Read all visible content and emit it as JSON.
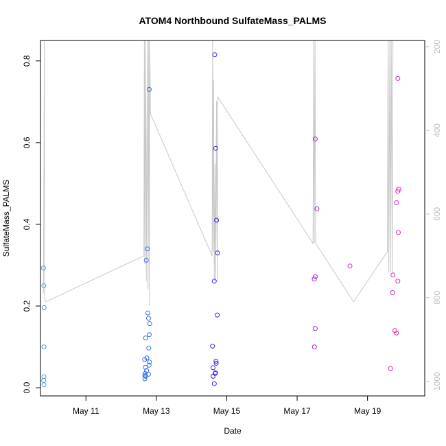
{
  "chart_data": {
    "type": "scatter",
    "title": "ATOM4 Northbound SulfateMass_PALMS",
    "xlabel": "Date",
    "ylabel": "SulfateMass_PALMS",
    "xlim": [
      "2018-05-09T17:00",
      "2018-05-20T15:00"
    ],
    "ylim": [
      -0.02,
      0.85
    ],
    "y2lim": [
      1035,
      185
    ],
    "x_ticks": [
      {
        "date": "2018-05-11",
        "label": "May 11"
      },
      {
        "date": "2018-05-13",
        "label": "May 13"
      },
      {
        "date": "2018-05-15",
        "label": "May 15"
      },
      {
        "date": "2018-05-17",
        "label": "May 17"
      },
      {
        "date": "2018-05-19",
        "label": "May 19"
      }
    ],
    "y_ticks": [
      {
        "value": 0.0,
        "label": "0.0"
      },
      {
        "value": 0.2,
        "label": "0.2"
      },
      {
        "value": 0.4,
        "label": "0.4"
      },
      {
        "value": 0.6,
        "label": "0.6"
      },
      {
        "value": 0.8,
        "label": "0.8"
      }
    ],
    "y2_ticks": [
      {
        "value": 200,
        "label": "200"
      },
      {
        "value": 400,
        "label": "400"
      },
      {
        "value": 600,
        "label": "600"
      },
      {
        "value": 800,
        "label": "800"
      },
      {
        "value": 1000,
        "label": "1000"
      }
    ],
    "grid": false,
    "points": [
      {
        "x": "2018-05-09T19:00",
        "y": 0.293,
        "color": "#3aa3e8"
      },
      {
        "x": "2018-05-09T19:15",
        "y": 0.25,
        "color": "#3aa3e8"
      },
      {
        "x": "2018-05-09T19:30",
        "y": 0.196,
        "color": "#3aa3e8"
      },
      {
        "x": "2018-05-09T19:20",
        "y": 0.1,
        "color": "#3aa3e8"
      },
      {
        "x": "2018-05-09T19:20",
        "y": 0.027,
        "color": "#3aa3e8"
      },
      {
        "x": "2018-05-09T19:10",
        "y": 0.018,
        "color": "#3aa3e8"
      },
      {
        "x": "2018-05-09T19:20",
        "y": 0.007,
        "color": "#3aa3e8"
      },
      {
        "x": "2018-05-12T17:50",
        "y": 0.34,
        "color": "#2f6df0"
      },
      {
        "x": "2018-05-12T17:10",
        "y": 0.312,
        "color": "#2f6df0"
      },
      {
        "x": "2018-05-12T19:10",
        "y": 0.73,
        "color": "#2f6df0"
      },
      {
        "x": "2018-05-12T18:10",
        "y": 0.183,
        "color": "#2f6df0"
      },
      {
        "x": "2018-05-12T18:40",
        "y": 0.17,
        "color": "#2f6df0"
      },
      {
        "x": "2018-05-12T19:30",
        "y": 0.157,
        "color": "#2f6df0"
      },
      {
        "x": "2018-05-12T19:10",
        "y": 0.13,
        "color": "#2f6df0"
      },
      {
        "x": "2018-05-12T16:40",
        "y": 0.122,
        "color": "#2f6df0"
      },
      {
        "x": "2018-05-12T18:50",
        "y": 0.097,
        "color": "#2f6df0"
      },
      {
        "x": "2018-05-12T17:30",
        "y": 0.073,
        "color": "#2f6df0"
      },
      {
        "x": "2018-05-12T16:00",
        "y": 0.069,
        "color": "#2f6df0"
      },
      {
        "x": "2018-05-12T19:20",
        "y": 0.063,
        "color": "#2f6df0"
      },
      {
        "x": "2018-05-12T19:00",
        "y": 0.055,
        "color": "#2f6df0"
      },
      {
        "x": "2018-05-12T16:30",
        "y": 0.05,
        "color": "#2f6df0"
      },
      {
        "x": "2018-05-12T17:20",
        "y": 0.042,
        "color": "#2f6df0"
      },
      {
        "x": "2018-05-12T16:20",
        "y": 0.035,
        "color": "#2f6df0"
      },
      {
        "x": "2018-05-12T18:40",
        "y": 0.033,
        "color": "#2f6df0"
      },
      {
        "x": "2018-05-12T16:10",
        "y": 0.03,
        "color": "#2f6df0"
      },
      {
        "x": "2018-05-12T16:40",
        "y": 0.028,
        "color": "#2f6df0"
      },
      {
        "x": "2018-05-12T16:10",
        "y": 0.022,
        "color": "#2f6df0"
      },
      {
        "x": "2018-05-14T15:50",
        "y": 0.815,
        "color": "#3a22e0"
      },
      {
        "x": "2018-05-14T16:30",
        "y": 0.586,
        "color": "#3a22e0"
      },
      {
        "x": "2018-05-14T17:00",
        "y": 0.41,
        "color": "#3a22e0"
      },
      {
        "x": "2018-05-14T17:40",
        "y": 0.33,
        "color": "#3a22e0"
      },
      {
        "x": "2018-05-14T15:30",
        "y": 0.261,
        "color": "#3a22e0"
      },
      {
        "x": "2018-05-14T17:30",
        "y": 0.178,
        "color": "#3a22e0"
      },
      {
        "x": "2018-05-14T14:20",
        "y": 0.102,
        "color": "#3a22e0"
      },
      {
        "x": "2018-05-14T16:40",
        "y": 0.065,
        "color": "#3a22e0"
      },
      {
        "x": "2018-05-14T16:50",
        "y": 0.06,
        "color": "#3a22e0"
      },
      {
        "x": "2018-05-14T14:40",
        "y": 0.049,
        "color": "#3a22e0"
      },
      {
        "x": "2018-05-14T16:20",
        "y": 0.037,
        "color": "#3a22e0"
      },
      {
        "x": "2018-05-14T16:00",
        "y": 0.035,
        "color": "#3a22e0"
      },
      {
        "x": "2018-05-14T14:40",
        "y": 0.028,
        "color": "#3a22e0"
      },
      {
        "x": "2018-05-14T15:30",
        "y": 0.01,
        "color": "#3a22e0"
      },
      {
        "x": "2018-05-17T12:20",
        "y": 0.609,
        "color": "#9a22d8"
      },
      {
        "x": "2018-05-17T13:30",
        "y": 0.438,
        "color": "#9a22d8"
      },
      {
        "x": "2018-05-17T12:20",
        "y": 0.272,
        "color": "#9a22d8"
      },
      {
        "x": "2018-05-17T11:40",
        "y": 0.266,
        "color": "#9a22d8"
      },
      {
        "x": "2018-05-17T12:20",
        "y": 0.145,
        "color": "#9a22d8"
      },
      {
        "x": "2018-05-17T11:50",
        "y": 0.1,
        "color": "#9a22d8"
      },
      {
        "x": "2018-05-18T12:00",
        "y": 0.298,
        "color": "#d020d8"
      },
      {
        "x": "2018-05-19T20:40",
        "y": 0.757,
        "color": "#e020b8"
      },
      {
        "x": "2018-05-19T21:20",
        "y": 0.486,
        "color": "#e020b8"
      },
      {
        "x": "2018-05-19T20:40",
        "y": 0.481,
        "color": "#e020b8"
      },
      {
        "x": "2018-05-19T19:50",
        "y": 0.453,
        "color": "#e020b8"
      },
      {
        "x": "2018-05-19T21:00",
        "y": 0.38,
        "color": "#e020b8"
      },
      {
        "x": "2018-05-19T17:20",
        "y": 0.276,
        "color": "#e020b8"
      },
      {
        "x": "2018-05-19T20:40",
        "y": 0.261,
        "color": "#e020b8"
      },
      {
        "x": "2018-05-19T17:00",
        "y": 0.233,
        "color": "#e020b8"
      },
      {
        "x": "2018-05-19T18:40",
        "y": 0.14,
        "color": "#e020b8"
      },
      {
        "x": "2018-05-19T19:40",
        "y": 0.134,
        "color": "#e020b8"
      },
      {
        "x": "2018-05-19T15:40",
        "y": 0.047,
        "color": "#e020b8"
      }
    ],
    "pressure_line": {
      "color": "#c8c8c8",
      "points": [
        [
          "2018-05-09T19:00",
          790
        ],
        [
          "2018-05-09T19:40",
          185
        ],
        [
          "2018-05-09T19:50",
          800
        ],
        [
          "2018-05-09T20:30",
          810
        ],
        [
          "2018-05-12T15:30",
          700
        ],
        [
          "2018-05-12T15:50",
          185
        ],
        [
          "2018-05-12T16:10",
          720
        ],
        [
          "2018-05-12T16:40",
          185
        ],
        [
          "2018-05-12T17:10",
          760
        ],
        [
          "2018-05-12T17:50",
          185
        ],
        [
          "2018-05-12T18:20",
          780
        ],
        [
          "2018-05-12T18:50",
          185
        ],
        [
          "2018-05-12T19:10",
          820
        ],
        [
          "2018-05-12T19:30",
          185
        ],
        [
          "2018-05-12T20:00",
          360
        ],
        [
          "2018-05-14T14:00",
          700
        ],
        [
          "2018-05-14T14:20",
          185
        ],
        [
          "2018-05-14T14:40",
          690
        ],
        [
          "2018-05-14T15:00",
          280
        ],
        [
          "2018-05-14T15:30",
          760
        ],
        [
          "2018-05-14T16:00",
          480
        ],
        [
          "2018-05-14T16:30",
          760
        ],
        [
          "2018-05-14T17:00",
          330
        ],
        [
          "2018-05-14T17:30",
          760
        ],
        [
          "2018-05-14T17:50",
          320
        ],
        [
          "2018-05-17T10:50",
          670
        ],
        [
          "2018-05-17T11:20",
          185
        ],
        [
          "2018-05-17T11:40",
          670
        ],
        [
          "2018-05-17T12:10",
          185
        ],
        [
          "2018-05-17T12:40",
          670
        ],
        [
          "2018-05-18T14:30",
          810
        ],
        [
          "2018-05-19T13:30",
          690
        ],
        [
          "2018-05-19T14:00",
          185
        ],
        [
          "2018-05-19T14:30",
          740
        ],
        [
          "2018-05-19T15:10",
          185
        ],
        [
          "2018-05-19T15:40",
          740
        ],
        [
          "2018-05-19T16:10",
          185
        ],
        [
          "2018-05-19T16:50",
          740
        ],
        [
          "2018-05-19T17:20",
          185
        ]
      ]
    }
  }
}
